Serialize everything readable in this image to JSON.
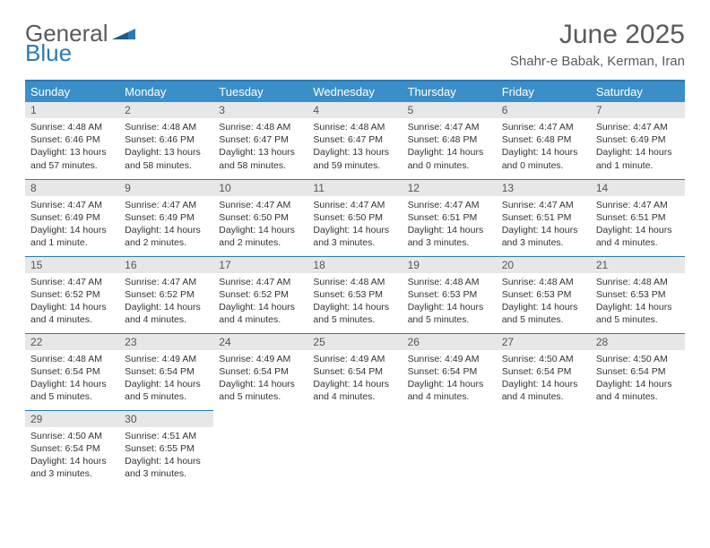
{
  "brand": {
    "part1": "General",
    "part2": "Blue"
  },
  "title": "June 2025",
  "location": "Shahr-e Babak, Kerman, Iran",
  "colors": {
    "header_bg": "#3b8fc9",
    "border": "#2a7ab8",
    "daynum_bg": "#e7e7e7",
    "text": "#333333",
    "title_text": "#5a5a5a"
  },
  "weekdays": [
    "Sunday",
    "Monday",
    "Tuesday",
    "Wednesday",
    "Thursday",
    "Friday",
    "Saturday"
  ],
  "weeks": [
    [
      {
        "n": "1",
        "sunrise": "Sunrise: 4:48 AM",
        "sunset": "Sunset: 6:46 PM",
        "day1": "Daylight: 13 hours",
        "day2": "and 57 minutes."
      },
      {
        "n": "2",
        "sunrise": "Sunrise: 4:48 AM",
        "sunset": "Sunset: 6:46 PM",
        "day1": "Daylight: 13 hours",
        "day2": "and 58 minutes."
      },
      {
        "n": "3",
        "sunrise": "Sunrise: 4:48 AM",
        "sunset": "Sunset: 6:47 PM",
        "day1": "Daylight: 13 hours",
        "day2": "and 58 minutes."
      },
      {
        "n": "4",
        "sunrise": "Sunrise: 4:48 AM",
        "sunset": "Sunset: 6:47 PM",
        "day1": "Daylight: 13 hours",
        "day2": "and 59 minutes."
      },
      {
        "n": "5",
        "sunrise": "Sunrise: 4:47 AM",
        "sunset": "Sunset: 6:48 PM",
        "day1": "Daylight: 14 hours",
        "day2": "and 0 minutes."
      },
      {
        "n": "6",
        "sunrise": "Sunrise: 4:47 AM",
        "sunset": "Sunset: 6:48 PM",
        "day1": "Daylight: 14 hours",
        "day2": "and 0 minutes."
      },
      {
        "n": "7",
        "sunrise": "Sunrise: 4:47 AM",
        "sunset": "Sunset: 6:49 PM",
        "day1": "Daylight: 14 hours",
        "day2": "and 1 minute."
      }
    ],
    [
      {
        "n": "8",
        "sunrise": "Sunrise: 4:47 AM",
        "sunset": "Sunset: 6:49 PM",
        "day1": "Daylight: 14 hours",
        "day2": "and 1 minute."
      },
      {
        "n": "9",
        "sunrise": "Sunrise: 4:47 AM",
        "sunset": "Sunset: 6:49 PM",
        "day1": "Daylight: 14 hours",
        "day2": "and 2 minutes."
      },
      {
        "n": "10",
        "sunrise": "Sunrise: 4:47 AM",
        "sunset": "Sunset: 6:50 PM",
        "day1": "Daylight: 14 hours",
        "day2": "and 2 minutes."
      },
      {
        "n": "11",
        "sunrise": "Sunrise: 4:47 AM",
        "sunset": "Sunset: 6:50 PM",
        "day1": "Daylight: 14 hours",
        "day2": "and 3 minutes."
      },
      {
        "n": "12",
        "sunrise": "Sunrise: 4:47 AM",
        "sunset": "Sunset: 6:51 PM",
        "day1": "Daylight: 14 hours",
        "day2": "and 3 minutes."
      },
      {
        "n": "13",
        "sunrise": "Sunrise: 4:47 AM",
        "sunset": "Sunset: 6:51 PM",
        "day1": "Daylight: 14 hours",
        "day2": "and 3 minutes."
      },
      {
        "n": "14",
        "sunrise": "Sunrise: 4:47 AM",
        "sunset": "Sunset: 6:51 PM",
        "day1": "Daylight: 14 hours",
        "day2": "and 4 minutes."
      }
    ],
    [
      {
        "n": "15",
        "sunrise": "Sunrise: 4:47 AM",
        "sunset": "Sunset: 6:52 PM",
        "day1": "Daylight: 14 hours",
        "day2": "and 4 minutes."
      },
      {
        "n": "16",
        "sunrise": "Sunrise: 4:47 AM",
        "sunset": "Sunset: 6:52 PM",
        "day1": "Daylight: 14 hours",
        "day2": "and 4 minutes."
      },
      {
        "n": "17",
        "sunrise": "Sunrise: 4:47 AM",
        "sunset": "Sunset: 6:52 PM",
        "day1": "Daylight: 14 hours",
        "day2": "and 4 minutes."
      },
      {
        "n": "18",
        "sunrise": "Sunrise: 4:48 AM",
        "sunset": "Sunset: 6:53 PM",
        "day1": "Daylight: 14 hours",
        "day2": "and 5 minutes."
      },
      {
        "n": "19",
        "sunrise": "Sunrise: 4:48 AM",
        "sunset": "Sunset: 6:53 PM",
        "day1": "Daylight: 14 hours",
        "day2": "and 5 minutes."
      },
      {
        "n": "20",
        "sunrise": "Sunrise: 4:48 AM",
        "sunset": "Sunset: 6:53 PM",
        "day1": "Daylight: 14 hours",
        "day2": "and 5 minutes."
      },
      {
        "n": "21",
        "sunrise": "Sunrise: 4:48 AM",
        "sunset": "Sunset: 6:53 PM",
        "day1": "Daylight: 14 hours",
        "day2": "and 5 minutes."
      }
    ],
    [
      {
        "n": "22",
        "sunrise": "Sunrise: 4:48 AM",
        "sunset": "Sunset: 6:54 PM",
        "day1": "Daylight: 14 hours",
        "day2": "and 5 minutes."
      },
      {
        "n": "23",
        "sunrise": "Sunrise: 4:49 AM",
        "sunset": "Sunset: 6:54 PM",
        "day1": "Daylight: 14 hours",
        "day2": "and 5 minutes."
      },
      {
        "n": "24",
        "sunrise": "Sunrise: 4:49 AM",
        "sunset": "Sunset: 6:54 PM",
        "day1": "Daylight: 14 hours",
        "day2": "and 5 minutes."
      },
      {
        "n": "25",
        "sunrise": "Sunrise: 4:49 AM",
        "sunset": "Sunset: 6:54 PM",
        "day1": "Daylight: 14 hours",
        "day2": "and 4 minutes."
      },
      {
        "n": "26",
        "sunrise": "Sunrise: 4:49 AM",
        "sunset": "Sunset: 6:54 PM",
        "day1": "Daylight: 14 hours",
        "day2": "and 4 minutes."
      },
      {
        "n": "27",
        "sunrise": "Sunrise: 4:50 AM",
        "sunset": "Sunset: 6:54 PM",
        "day1": "Daylight: 14 hours",
        "day2": "and 4 minutes."
      },
      {
        "n": "28",
        "sunrise": "Sunrise: 4:50 AM",
        "sunset": "Sunset: 6:54 PM",
        "day1": "Daylight: 14 hours",
        "day2": "and 4 minutes."
      }
    ],
    [
      {
        "n": "29",
        "sunrise": "Sunrise: 4:50 AM",
        "sunset": "Sunset: 6:54 PM",
        "day1": "Daylight: 14 hours",
        "day2": "and 3 minutes."
      },
      {
        "n": "30",
        "sunrise": "Sunrise: 4:51 AM",
        "sunset": "Sunset: 6:55 PM",
        "day1": "Daylight: 14 hours",
        "day2": "and 3 minutes."
      },
      null,
      null,
      null,
      null,
      null
    ]
  ]
}
